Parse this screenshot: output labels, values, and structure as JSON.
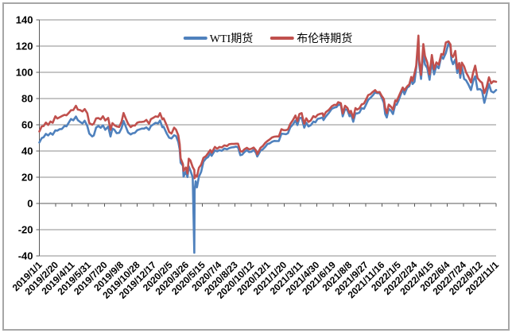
{
  "chart": {
    "legend": [
      {
        "label": "WTI期货",
        "color": "#4F81BD"
      },
      {
        "label": "布伦特期货",
        "color": "#C0504D"
      }
    ]
  },
  "chart_data": {
    "type": "line",
    "title": "",
    "xlabel": "",
    "ylabel": "",
    "grid": true,
    "legend_position": "top-center",
    "ylim": [
      -40,
      140
    ],
    "ytick_interval": 20,
    "yticks": [
      140,
      120,
      100,
      80,
      60,
      40,
      20,
      0,
      -20,
      -40
    ],
    "x_range": [
      "2019/1/1",
      "2022/11/1"
    ],
    "xticklabels": [
      "2019/1/1",
      "2019/2/20",
      "2019/4/11",
      "2019/5/31",
      "2019/7/20",
      "2019/9/8",
      "2019/10/28",
      "2019/12/17",
      "2020/2/5",
      "2020/3/26",
      "2020/5/15",
      "2020/7/4",
      "2020/8/23",
      "2020/10/12",
      "2020/12/1",
      "2021/1/20",
      "2021/3/11",
      "2021/4/30",
      "2021/6/19",
      "2021/8/8",
      "2021/9/27",
      "2021/11/16",
      "2022/1/5",
      "2022/2/24",
      "2022/4/15",
      "2022/6/4",
      "2022/7/24",
      "2022/9/12",
      "2022/11/1"
    ],
    "gridline_color": "#8c8c8c",
    "axis_color": "#595959",
    "frame_color": "#a6a6a6",
    "dates": [
      "2019/1/1",
      "2019/1/8",
      "2019/1/14",
      "2019/1/21",
      "2019/1/28",
      "2019/2/4",
      "2019/2/11",
      "2019/2/19",
      "2019/2/25",
      "2019/3/4",
      "2019/3/11",
      "2019/3/19",
      "2019/3/25",
      "2019/4/1",
      "2019/4/8",
      "2019/4/15",
      "2019/4/23",
      "2019/4/29",
      "2019/5/6",
      "2019/5/13",
      "2019/5/20",
      "2019/5/28",
      "2019/6/3",
      "2019/6/12",
      "2019/6/17",
      "2019/6/24",
      "2019/7/1",
      "2019/7/8",
      "2019/7/15",
      "2019/7/22",
      "2019/7/31",
      "2019/8/7",
      "2019/8/13",
      "2019/8/19",
      "2019/8/26",
      "2019/9/3",
      "2019/9/10",
      "2019/9/16",
      "2019/9/23",
      "2019/9/30",
      "2019/10/8",
      "2019/10/14",
      "2019/10/21",
      "2019/10/28",
      "2019/11/4",
      "2019/11/11",
      "2019/11/18",
      "2019/11/25",
      "2019/12/3",
      "2019/12/9",
      "2019/12/16",
      "2019/12/23",
      "2019/12/31",
      "2020/1/6",
      "2020/1/13",
      "2020/1/17",
      "2020/1/27",
      "2020/2/3",
      "2020/2/10",
      "2020/2/18",
      "2020/2/24",
      "2020/3/2",
      "2020/3/6",
      "2020/3/9",
      "2020/3/16",
      "2020/3/18",
      "2020/3/25",
      "2020/3/30",
      "2020/4/3",
      "2020/4/8",
      "2020/4/15",
      "2020/4/20",
      "2020/4/21",
      "2020/4/24",
      "2020/4/28",
      "2020/5/4",
      "2020/5/11",
      "2020/5/18",
      "2020/5/26",
      "2020/6/1",
      "2020/6/8",
      "2020/6/12",
      "2020/6/22",
      "2020/6/29",
      "2020/7/6",
      "2020/7/13",
      "2020/7/21",
      "2020/7/29",
      "2020/8/5",
      "2020/8/12",
      "2020/8/19",
      "2020/8/26",
      "2020/9/1",
      "2020/9/8",
      "2020/9/14",
      "2020/9/21",
      "2020/9/28",
      "2020/10/5",
      "2020/10/12",
      "2020/10/19",
      "2020/10/26",
      "2020/10/30",
      "2020/11/9",
      "2020/11/16",
      "2020/11/23",
      "2020/11/30",
      "2020/12/7",
      "2020/12/14",
      "2020/12/21",
      "2020/12/28",
      "2021/1/4",
      "2021/1/12",
      "2021/1/19",
      "2021/1/26",
      "2021/2/1",
      "2021/2/8",
      "2021/2/16",
      "2021/2/24",
      "2021/3/2",
      "2021/3/8",
      "2021/3/15",
      "2021/3/19",
      "2021/3/23",
      "2021/3/29",
      "2021/4/5",
      "2021/4/12",
      "2021/4/20",
      "2021/4/26",
      "2021/5/3",
      "2021/5/10",
      "2021/5/18",
      "2021/5/21",
      "2021/5/28",
      "2021/6/7",
      "2021/6/15",
      "2021/6/23",
      "2021/6/30",
      "2021/7/5",
      "2021/7/13",
      "2021/7/19",
      "2021/7/26",
      "2021/8/2",
      "2021/8/9",
      "2021/8/13",
      "2021/8/20",
      "2021/8/27",
      "2021/9/1",
      "2021/9/8",
      "2021/9/15",
      "2021/9/22",
      "2021/9/28",
      "2021/10/5",
      "2021/10/12",
      "2021/10/19",
      "2021/10/26",
      "2021/11/1",
      "2021/11/9",
      "2021/11/15",
      "2021/11/22",
      "2021/11/26",
      "2021/12/1",
      "2021/12/7",
      "2021/12/14",
      "2021/12/20",
      "2021/12/27",
      "2021/12/31",
      "2022/1/5",
      "2022/1/12",
      "2022/1/19",
      "2022/1/24",
      "2022/2/1",
      "2022/2/8",
      "2022/2/14",
      "2022/2/18",
      "2022/2/24",
      "2022/3/1",
      "2022/3/8",
      "2022/3/10",
      "2022/3/16",
      "2022/3/23",
      "2022/3/28",
      "2022/4/4",
      "2022/4/11",
      "2022/4/18",
      "2022/4/25",
      "2022/5/2",
      "2022/5/9",
      "2022/5/17",
      "2022/5/23",
      "2022/5/31",
      "2022/6/8",
      "2022/6/14",
      "2022/6/17",
      "2022/6/22",
      "2022/6/29",
      "2022/7/5",
      "2022/7/11",
      "2022/7/14",
      "2022/7/19",
      "2022/7/26",
      "2022/8/1",
      "2022/8/8",
      "2022/8/16",
      "2022/8/23",
      "2022/8/29",
      "2022/9/5",
      "2022/9/13",
      "2022/9/19",
      "2022/9/26",
      "2022/10/3",
      "2022/10/10",
      "2022/10/17",
      "2022/10/24",
      "2022/11/1"
    ],
    "series": [
      {
        "name": "WTI期货",
        "color": "#4F81BD",
        "values": [
          46.5,
          49.8,
          50.5,
          53.0,
          51.9,
          53.7,
          52.4,
          55.7,
          55.5,
          56.6,
          56.8,
          59.1,
          58.8,
          61.6,
          64.4,
          63.4,
          66.3,
          63.5,
          62.2,
          61.0,
          63.1,
          59.1,
          53.3,
          51.1,
          51.9,
          57.9,
          59.1,
          57.7,
          59.6,
          56.2,
          58.6,
          51.1,
          57.1,
          56.2,
          53.6,
          53.9,
          57.4,
          62.9,
          58.6,
          54.1,
          52.6,
          53.6,
          53.8,
          55.8,
          56.5,
          57.1,
          57.1,
          58.0,
          56.1,
          59.0,
          60.2,
          61.5,
          61.1,
          63.3,
          58.1,
          58.5,
          53.1,
          50.1,
          49.6,
          52.0,
          51.4,
          46.8,
          41.3,
          31.1,
          28.7,
          20.4,
          24.5,
          20.1,
          28.3,
          25.1,
          19.9,
          -37.6,
          10.0,
          16.9,
          12.3,
          20.4,
          24.1,
          31.8,
          34.4,
          35.4,
          38.2,
          36.3,
          40.5,
          39.7,
          40.6,
          40.1,
          41.9,
          41.3,
          42.2,
          42.7,
          42.9,
          43.4,
          42.8,
          36.8,
          37.3,
          39.3,
          40.6,
          39.2,
          39.4,
          40.8,
          38.6,
          35.8,
          40.3,
          41.3,
          43.1,
          45.3,
          45.8,
          47.0,
          47.7,
          47.6,
          47.6,
          53.2,
          53.0,
          52.8,
          53.6,
          58.0,
          60.1,
          63.2,
          59.8,
          65.1,
          65.4,
          61.4,
          57.8,
          61.6,
          58.7,
          59.7,
          62.4,
          61.9,
          64.5,
          64.9,
          65.5,
          63.6,
          66.3,
          69.2,
          72.1,
          73.1,
          73.5,
          75.2,
          75.3,
          66.4,
          71.9,
          71.3,
          66.5,
          68.4,
          62.3,
          68.7,
          68.6,
          69.3,
          72.6,
          72.2,
          75.3,
          79.0,
          80.6,
          82.4,
          84.7,
          84.1,
          84.2,
          80.9,
          76.8,
          68.2,
          65.6,
          72.1,
          70.7,
          68.2,
          75.6,
          75.2,
          77.9,
          82.6,
          87.0,
          83.3,
          88.2,
          89.4,
          95.5,
          91.1,
          92.8,
          103.4,
          123.7,
          106.0,
          95.0,
          115.0,
          106.0,
          103.3,
          94.3,
          108.2,
          98.5,
          105.2,
          103.1,
          112.4,
          110.3,
          114.7,
          122.1,
          118.9,
          109.6,
          106.2,
          109.8,
          99.5,
          104.1,
          95.8,
          104.2,
          95.0,
          93.9,
          90.8,
          86.5,
          93.7,
          97.0,
          86.9,
          87.3,
          85.7,
          76.7,
          83.6,
          91.1,
          85.5,
          84.6,
          86.5
        ]
      },
      {
        "name": "布伦特期货",
        "color": "#C0504D",
        "values": [
          54.9,
          58.7,
          59.0,
          61.7,
          59.9,
          62.5,
          61.5,
          66.5,
          64.8,
          65.7,
          66.6,
          67.6,
          67.2,
          69.0,
          71.1,
          71.2,
          74.5,
          71.6,
          71.2,
          70.2,
          72.0,
          68.8,
          61.3,
          60.0,
          60.9,
          64.9,
          65.1,
          64.1,
          66.5,
          63.3,
          65.2,
          56.2,
          61.3,
          59.7,
          58.7,
          58.3,
          62.4,
          69.0,
          64.8,
          60.8,
          58.2,
          59.4,
          59.4,
          61.6,
          62.1,
          62.2,
          62.4,
          63.7,
          60.8,
          64.3,
          65.3,
          66.4,
          66.0,
          68.9,
          64.2,
          64.9,
          59.3,
          54.4,
          53.3,
          57.8,
          56.3,
          51.9,
          45.3,
          34.4,
          30.0,
          24.9,
          27.4,
          22.8,
          34.1,
          32.8,
          27.7,
          25.6,
          19.3,
          21.4,
          20.5,
          27.2,
          29.6,
          34.8,
          36.2,
          38.3,
          40.8,
          38.7,
          43.1,
          41.7,
          43.1,
          42.7,
          44.3,
          43.8,
          45.2,
          45.4,
          45.4,
          45.6,
          45.6,
          39.8,
          39.6,
          41.4,
          42.4,
          41.3,
          41.7,
          42.6,
          40.5,
          37.5,
          42.4,
          43.8,
          46.1,
          47.6,
          48.8,
          50.3,
          50.9,
          51.1,
          51.1,
          56.6,
          55.9,
          55.9,
          56.4,
          60.6,
          63.4,
          67.0,
          62.7,
          68.2,
          68.9,
          64.5,
          60.8,
          65.0,
          62.2,
          63.3,
          66.6,
          65.7,
          67.6,
          68.3,
          68.7,
          66.4,
          69.6,
          71.5,
          74.0,
          75.2,
          75.1,
          77.2,
          76.5,
          68.6,
          74.5,
          72.9,
          69.0,
          70.6,
          65.2,
          72.7,
          71.6,
          72.6,
          75.5,
          76.2,
          79.1,
          82.6,
          83.4,
          85.1,
          86.4,
          84.7,
          85.0,
          82.1,
          79.7,
          72.7,
          68.9,
          75.4,
          73.7,
          71.5,
          78.6,
          77.8,
          80.8,
          84.7,
          88.4,
          86.3,
          89.2,
          90.8,
          96.5,
          93.5,
          99.1,
          105.0,
          128.0,
          109.3,
          98.0,
          121.6,
          112.5,
          107.5,
          98.5,
          113.2,
          102.3,
          107.6,
          105.9,
          114.0,
          113.4,
          122.8,
          123.6,
          121.2,
          113.1,
          111.7,
          116.3,
          102.8,
          107.1,
          99.1,
          107.4,
          104.4,
          100.0,
          96.7,
          92.3,
          100.2,
          105.1,
          95.7,
          93.2,
          92.0,
          84.1,
          88.9,
          96.2,
          91.6,
          93.3,
          92.8
        ]
      }
    ]
  }
}
